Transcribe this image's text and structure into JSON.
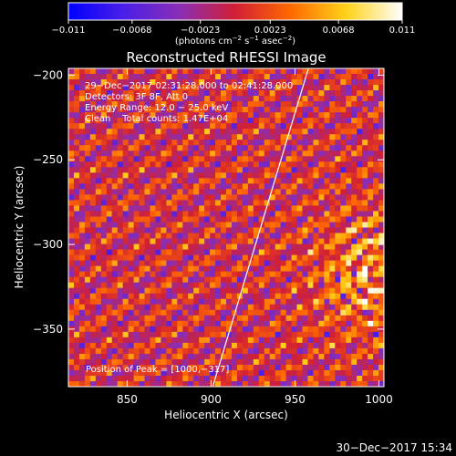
{
  "chart_data": {
    "type": "heatmap",
    "title": "Reconstructed RHESSI Image",
    "xlabel": "Heliocentric X (arcsec)",
    "ylabel": "Heliocentric Y (arcsec)",
    "xlim": [
      815,
      1003
    ],
    "ylim": [
      -384,
      -196
    ],
    "x_ticks": [
      {
        "value": 850,
        "label": "850"
      },
      {
        "value": 900,
        "label": "900"
      },
      {
        "value": 950,
        "label": "950"
      },
      {
        "value": 1000,
        "label": "1000"
      }
    ],
    "y_ticks": [
      {
        "value": -200,
        "label": "−200"
      },
      {
        "value": -250,
        "label": "−250"
      },
      {
        "value": -300,
        "label": "−300"
      },
      {
        "value": -350,
        "label": "−350"
      }
    ],
    "colorbar": {
      "range": [
        -0.011,
        0.011
      ],
      "ticks": [
        {
          "value": -0.011,
          "label": "−0.011"
        },
        {
          "value": -0.0068,
          "label": "−0.0068"
        },
        {
          "value": -0.0023,
          "label": "−0.0023"
        },
        {
          "value": 0.0023,
          "label": "0.0023"
        },
        {
          "value": 0.0068,
          "label": "0.0068"
        },
        {
          "value": 0.011,
          "label": "0.011"
        }
      ],
      "unit_main": "(photons cm",
      "unit_sup1": "−2",
      "unit_mid": " s",
      "unit_sup2": "−1",
      "unit_mid2": " asec",
      "unit_sup3": "−2",
      "unit_end": ")"
    },
    "annotations": [
      "29−Dec−2017 02:31:28.000 to 02:41:28.000",
      "Detectors: 3F 8F, Att 0",
      "Energy Range: 12.0 − 25.0 keV",
      "Clean    Total counts: 1.47E+04"
    ],
    "peak_label": "Position of Peak = [1000,−317]",
    "peak": {
      "x": 1000,
      "y": -317
    },
    "limb_line": [
      {
        "x": 901,
        "y": -384
      },
      {
        "x": 958,
        "y": -196
      }
    ],
    "timestamp": "30−Dec−2017 15:34"
  },
  "colors": {
    "background": "#000000",
    "colorbar_stops": [
      "#0000ff",
      "#4b1fe8",
      "#8a2eb6",
      "#d21f34",
      "#ff6a00",
      "#ffd21a",
      "#ffffff"
    ]
  }
}
